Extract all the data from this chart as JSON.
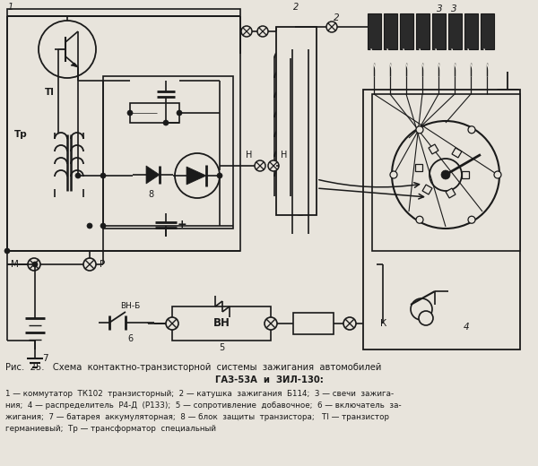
{
  "bg_color": "#e8e4dc",
  "fg_color": "#1a1a1a",
  "fig_width": 6.0,
  "fig_height": 5.2,
  "dpi": 100,
  "title_line1": "Рис.  25.   Схема  контактно-транзисторной  системы  зажигания  автомобилей",
  "title_line2": "ГАЗ-53А  и  ЗИЛ-130:",
  "legend_line1": "1 — коммутатор  ТК102  транзисторный;  2 — катушка  зажигания  Б114;  3 — свечи  зажига-",
  "legend_line2": "ния;  4 — распределитель  Р4-Д  (Р133);  5 — сопротивление  добавочное;  6 — включатель  за-",
  "legend_line3": "жигания;  7 — батарея  аккумуляторная;  8 — блок  защиты  транзистора;   Тl — транзистор",
  "legend_line4": "германиевый;  Тр — трансформатор  специальный"
}
